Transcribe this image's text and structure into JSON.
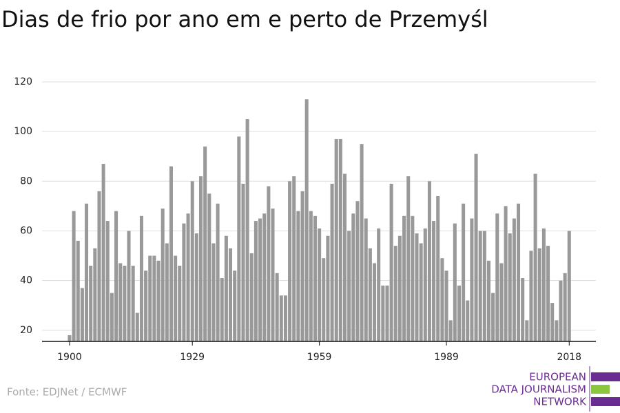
{
  "chart_data": {
    "type": "bar",
    "title": "Dias de frio por ano em e perto de Przemyśl",
    "source": "Fonte: EDJNet / ECMWF",
    "logo": [
      "EUROPEAN",
      "DATA JOURNALISM",
      "NETWORK"
    ],
    "color": "#999999",
    "x": [
      1900,
      1901,
      1902,
      1903,
      1904,
      1905,
      1906,
      1907,
      1908,
      1909,
      1910,
      1911,
      1912,
      1913,
      1914,
      1915,
      1916,
      1917,
      1918,
      1919,
      1920,
      1921,
      1922,
      1923,
      1924,
      1925,
      1926,
      1927,
      1928,
      1929,
      1930,
      1931,
      1932,
      1933,
      1934,
      1935,
      1936,
      1937,
      1938,
      1939,
      1940,
      1941,
      1942,
      1943,
      1944,
      1945,
      1946,
      1947,
      1948,
      1949,
      1950,
      1951,
      1952,
      1953,
      1954,
      1955,
      1956,
      1957,
      1958,
      1959,
      1960,
      1961,
      1962,
      1963,
      1964,
      1965,
      1966,
      1967,
      1968,
      1969,
      1970,
      1971,
      1972,
      1973,
      1974,
      1975,
      1976,
      1977,
      1978,
      1979,
      1980,
      1981,
      1982,
      1983,
      1984,
      1985,
      1986,
      1987,
      1988,
      1989,
      1990,
      1991,
      1992,
      1993,
      1994,
      1995,
      1996,
      1997,
      1998,
      1999,
      2000,
      2001,
      2002,
      2003,
      2004,
      2005,
      2006,
      2007,
      2008,
      2009,
      2010,
      2011,
      2012,
      2013,
      2014,
      2015,
      2016,
      2017,
      2018
    ],
    "values": [
      18,
      68,
      56,
      37,
      71,
      46,
      53,
      76,
      87,
      64,
      35,
      68,
      47,
      46,
      60,
      46,
      27,
      66,
      44,
      50,
      50,
      48,
      69,
      55,
      86,
      50,
      46,
      63,
      67,
      80,
      59,
      82,
      94,
      75,
      55,
      71,
      41,
      58,
      53,
      44,
      98,
      79,
      105,
      51,
      64,
      65,
      67,
      78,
      69,
      43,
      34,
      34,
      80,
      82,
      68,
      76,
      113,
      68,
      66,
      61,
      49,
      58,
      79,
      97,
      97,
      83,
      60,
      67,
      72,
      95,
      65,
      53,
      47,
      61,
      38,
      38,
      79,
      54,
      58,
      66,
      82,
      66,
      59,
      55,
      61,
      80,
      64,
      74,
      49,
      44,
      24,
      63,
      38,
      71,
      32,
      65,
      91,
      60,
      60,
      48,
      35,
      67,
      47,
      70,
      59,
      65,
      71,
      41,
      24,
      52,
      83,
      53,
      61,
      54,
      31,
      24,
      40,
      43,
      60
    ],
    "xlim": [
      1893.5,
      2024.3
    ],
    "xticks": [
      1900,
      1929,
      1959,
      1989,
      2018
    ],
    "ylim": [
      15.5,
      120
    ],
    "yticks": [
      20,
      40,
      60,
      80,
      100,
      120
    ],
    "grid": true
  }
}
